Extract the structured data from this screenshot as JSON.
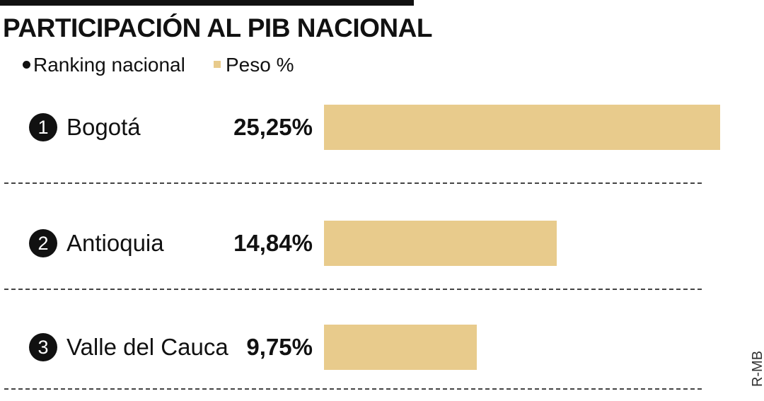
{
  "title": "PARTICIPACIÓN AL PIB NACIONAL",
  "legend": {
    "ranking_label": "Ranking nacional",
    "peso_label": "Peso %"
  },
  "credit": "R-MB",
  "colors": {
    "bar": "#e8cb8c",
    "badge": "#111111"
  },
  "chart_data": {
    "type": "bar",
    "orientation": "horizontal",
    "title": "PARTICIPACIÓN AL PIB NACIONAL",
    "categories": [
      "Bogotá",
      "Antioquia",
      "Valle del Cauca"
    ],
    "ranks": [
      "1",
      "2",
      "3"
    ],
    "values": [
      25.25,
      14.84,
      9.75
    ],
    "value_labels": [
      "25,25%",
      "14,84%",
      "9,75%"
    ],
    "xlim": [
      0,
      25.25
    ],
    "grid": false
  }
}
